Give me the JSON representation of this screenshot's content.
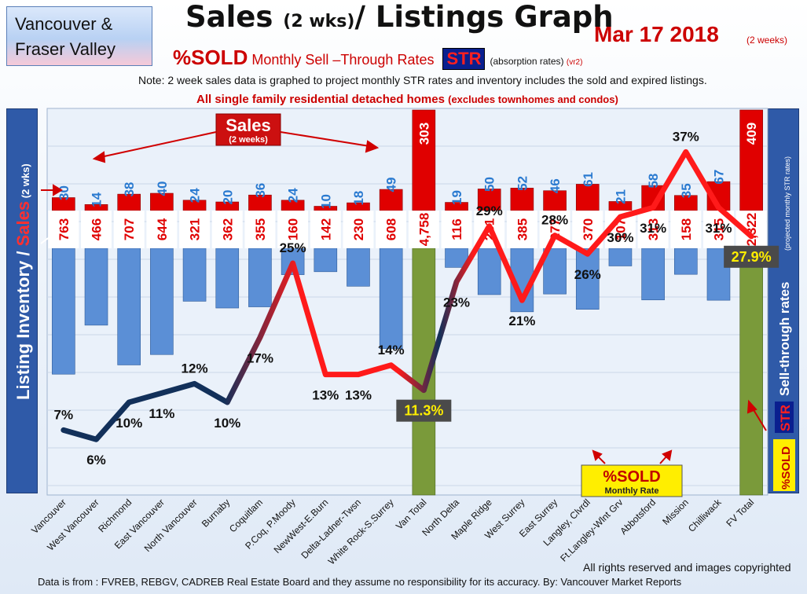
{
  "header": {
    "region_line1": "Vancouver &",
    "region_line2": "Fraser Valley",
    "title_a": "Sales ",
    "title_b": "(2 wks)",
    "title_c": "/ Listings Graph",
    "date": "Mar 17  2018",
    "date_sub": "(2 weeks)",
    "sub_pct": "%SOLD",
    "sub_mid": " Monthly Sell –Through Rates ",
    "str": "STR",
    "absorption": "(absorption rates)",
    "version": "(vr2)",
    "note": "Note: 2 week sales data is graphed to project monthly STR rates and inventory includes the sold and expired listings.",
    "subnote_main": "All single family residential detached homes ",
    "subnote_small": "(excludes townhomes and condos)"
  },
  "side_labels": {
    "left_a": "Listing Inventory / ",
    "left_b": "Sales",
    "left_c": " (2 wks)",
    "right_a": "Sell-through rates",
    "right_b": "(projected monthly STR rates)",
    "right_str": "STR",
    "right_sold": "%SOLD"
  },
  "annotations": {
    "sales_tag": "Sales",
    "sales_tag_sub": "(2 weeks)",
    "sold_box_title": "%SOLD",
    "sold_box_sub": "Monthly Rate"
  },
  "footer": {
    "rights": "All rights reserved and  images copyrighted",
    "source": "Data is from : FVREB, REBGV, CADREB Real Estate Board and they assume  no responsibility for its accuracy.  By:  Vancouver Market Reports"
  },
  "colors": {
    "sales_bar": "#e00000",
    "inventory_bar": "#5b8fd6",
    "total_bar": "#7a9a3a",
    "str_low": "#12305a",
    "str_high": "#ff1a1a"
  },
  "chart_data": {
    "type": "bar",
    "categories": [
      "Vancouver",
      "West Vancouver",
      "Richmond",
      "East Vancouver",
      "North Vancouver",
      "Burnaby",
      "Coquitlam",
      "P.Coq, P.Moody",
      "NewWest-E.Burn",
      "Delta-Ladner-Twsn",
      "White Rock-S.Surrey",
      "Van Total",
      "North Delta",
      "Maple Ridge",
      "West Surrey",
      "East Surrey",
      "Langley, Clvrdl",
      "Ft.Langley-Wlnt Grv",
      "Abbotsford",
      "Mission",
      "Chilliwack",
      "FV Total"
    ],
    "series": [
      {
        "name": "Sales",
        "values": [
          30,
          14,
          38,
          40,
          24,
          20,
          36,
          24,
          10,
          18,
          49,
          303,
          19,
          50,
          52,
          46,
          61,
          21,
          58,
          35,
          67,
          409
        ]
      },
      {
        "name": "Listing Inventory",
        "values": [
          763,
          466,
          707,
          644,
          321,
          362,
          355,
          160,
          142,
          230,
          608,
          4758,
          116,
          281,
          385,
          277,
          370,
          107,
          313,
          158,
          315,
          2322
        ]
      },
      {
        "name": "%SOLD",
        "values": [
          7,
          6,
          10,
          11,
          12,
          10,
          17,
          25,
          13,
          13,
          14,
          11.3,
          23,
          29,
          21,
          28,
          26,
          30,
          31,
          37,
          31,
          27.9
        ]
      }
    ],
    "sales_labels": [
      "30",
      "14",
      "38",
      "40",
      "24",
      "20",
      "36",
      "24",
      "10",
      "18",
      "49",
      "303",
      "19",
      "50",
      "52",
      "46",
      "61",
      "21",
      "58",
      "35",
      "67",
      "409"
    ],
    "inventory_labels": [
      "763",
      "466",
      "707",
      "644",
      "321",
      "362",
      "355",
      "160",
      "142",
      "230",
      "608",
      "4,758",
      "116",
      "281",
      "385",
      "277",
      "370",
      "107",
      "313",
      "158",
      "315",
      "2,322"
    ],
    "str_labels": [
      "7%",
      "6%",
      "10%",
      "11%",
      "12%",
      "10%",
      "17%",
      "25%",
      "13%",
      "13%",
      "14%",
      "11.3%",
      "23%",
      "29%",
      "21%",
      "28%",
      "26%",
      "30%",
      "31%",
      "37%",
      "31%",
      "27.9%"
    ],
    "totals": [
      "Van Total",
      "FV Total"
    ],
    "ylabel": "Listing Inventory / Sales (2 wks)",
    "y2label": "Sell-through rates",
    "grid": true
  }
}
